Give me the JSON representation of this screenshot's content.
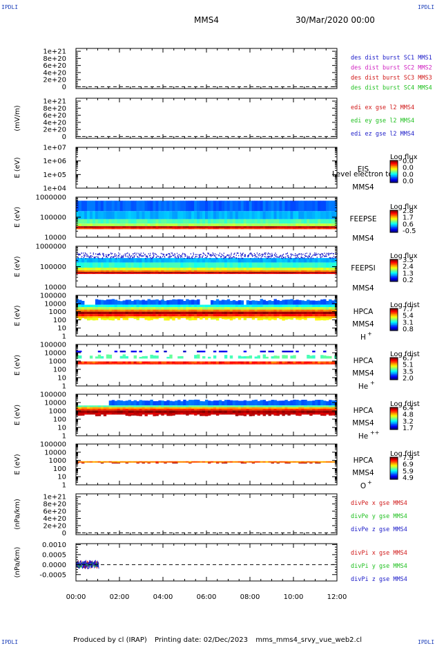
{
  "header": {
    "corner_label": "IPDLI",
    "spacecraft": "MMS4",
    "datetime": "30/Mar/2020 00:00"
  },
  "footer": {
    "produced": "Produced by cl (IRAP)",
    "printing": "Printing date: 02/Dec/2023",
    "script": "mms_mms4_srvy_vue_web2.cl"
  },
  "x_axis": {
    "ticks": [
      "00:00",
      "02:00",
      "04:00",
      "06:00",
      "08:00",
      "10:00",
      "12:00"
    ]
  },
  "chart_data": [
    {
      "id": "p1",
      "type": "line",
      "ylabel": "",
      "yticks": [
        "1e+21",
        "8e+20",
        "6e+20",
        "4e+20",
        "2e+20",
        "0"
      ],
      "yvals": [
        1e+21,
        8e+20,
        6e+20,
        4e+20,
        2e+20,
        0
      ],
      "ylim": [
        -5e+19,
        1.08e+21
      ],
      "zero_dashed": true,
      "legend": [
        {
          "text": "des dist burst SC1 MMS1",
          "color": "#1a1ac8"
        },
        {
          "text": "des dist burst SC2 MMS2",
          "color": "#d020c0"
        },
        {
          "text": "des dist burst SC3 MMS3",
          "color": "#d01818"
        },
        {
          "text": "des dist burst SC4 MMS4",
          "color": "#20c020"
        }
      ]
    },
    {
      "id": "p2",
      "type": "line",
      "ylabel": "(mV/m)",
      "yticks": [
        "1e+21",
        "8e+20",
        "6e+20",
        "4e+20",
        "2e+20",
        "0"
      ],
      "yvals": [
        1e+21,
        8e+20,
        6e+20,
        4e+20,
        2e+20,
        0
      ],
      "ylim": [
        -5e+19,
        1.08e+21
      ],
      "zero_dashed": true,
      "legend": [
        {
          "text": "edi ex gse l2 MMS4",
          "color": "#d01818"
        },
        {
          "text": "edi ey gse l2 MMS4",
          "color": "#20c020"
        },
        {
          "text": "edi ez gse l2 MMS4",
          "color": "#1a1ac8"
        }
      ]
    },
    {
      "id": "p3",
      "type": "heatmap",
      "ylabel": "E (eV)",
      "yticks": [
        "1e+07",
        "1e+06",
        "1e+05",
        "1e+04"
      ],
      "log_range": [
        4,
        7
      ],
      "instrument": "EIS",
      "craft": "MMS4",
      "overlay_text": "Level electron to",
      "colorbar": {
        "title": "Log flux",
        "labels": [
          "0.0",
          "0.0",
          "0.0",
          "0.0"
        ]
      },
      "spectrum": "none"
    },
    {
      "id": "p4",
      "type": "heatmap",
      "ylabel": "E (eV)",
      "yticks": [
        "1000000",
        "100000",
        "10000"
      ],
      "log_range": [
        4,
        6
      ],
      "instrument": "FEEPSE",
      "craft": "MMS4",
      "colorbar": {
        "title": "Log flux",
        "labels": [
          "2.8",
          "1.7",
          "0.6",
          "-0.5"
        ]
      },
      "spectrum": "feepse",
      "data_extent_hours": [
        0,
        12
      ]
    },
    {
      "id": "p5",
      "type": "heatmap",
      "ylabel": "E (eV)",
      "yticks": [
        "1000000",
        "100000",
        "10000"
      ],
      "log_range": [
        4,
        6
      ],
      "instrument": "FEEPSI",
      "craft": "MMS4",
      "colorbar": {
        "title": "Log flux",
        "labels": [
          "3.5",
          "2.4",
          "1.3",
          "0.2"
        ]
      },
      "spectrum": "feepsi",
      "data_extent_hours": [
        0,
        12
      ]
    },
    {
      "id": "p6",
      "type": "heatmap",
      "ylabel": "E (eV)",
      "yticks": [
        "100000",
        "10000",
        "1000",
        "100",
        "10",
        "1"
      ],
      "log_range": [
        0,
        5
      ],
      "instrument": "HPCA",
      "craft": "MMS4",
      "species": "H",
      "charge": "+",
      "colorbar": {
        "title": "Log fdist",
        "labels": [
          "7.7",
          "5.4",
          "3.1",
          "0.8"
        ]
      },
      "spectrum": "hpca_h",
      "data_extent_hours": [
        0,
        12
      ]
    },
    {
      "id": "p7",
      "type": "heatmap",
      "ylabel": "E (eV)",
      "yticks": [
        "100000",
        "10000",
        "1000",
        "100",
        "10",
        "1"
      ],
      "log_range": [
        0,
        5
      ],
      "instrument": "HPCA",
      "craft": "MMS4",
      "species": "He",
      "charge": "+",
      "colorbar": {
        "title": "Log fdist",
        "labels": [
          "6.7",
          "5.1",
          "3.5",
          "2.0"
        ]
      },
      "spectrum": "hpca_he1",
      "data_extent_hours": [
        0,
        12
      ]
    },
    {
      "id": "p8",
      "type": "heatmap",
      "ylabel": "E (eV)",
      "yticks": [
        "100000",
        "10000",
        "1000",
        "100",
        "10",
        "1"
      ],
      "log_range": [
        0,
        5
      ],
      "instrument": "HPCA",
      "craft": "MMS4",
      "species": "He",
      "charge": "++",
      "colorbar": {
        "title": "Log fdist",
        "labels": [
          "6.4",
          "4.8",
          "3.2",
          "1.7"
        ]
      },
      "spectrum": "hpca_he2",
      "data_extent_hours": [
        0,
        12
      ]
    },
    {
      "id": "p9",
      "type": "heatmap",
      "ylabel": "E (eV)",
      "yticks": [
        "100000",
        "10000",
        "1000",
        "100",
        "10",
        "1"
      ],
      "log_range": [
        0,
        5
      ],
      "instrument": "HPCA",
      "craft": "MMS4",
      "species": "O",
      "charge": "+",
      "colorbar": {
        "title": "Log fdist",
        "labels": [
          "7.9",
          "6.9",
          "5.9",
          "4.9"
        ]
      },
      "spectrum": "hpca_o",
      "data_extent_hours": [
        0,
        12
      ]
    },
    {
      "id": "p10",
      "type": "line",
      "ylabel": "(nPa/km)",
      "yticks": [
        "1e+21",
        "8e+20",
        "6e+20",
        "4e+20",
        "2e+20",
        "0"
      ],
      "yvals": [
        1e+21,
        8e+20,
        6e+20,
        4e+20,
        2e+20,
        0
      ],
      "ylim": [
        -5e+19,
        1.08e+21
      ],
      "zero_dashed": true,
      "legend": [
        {
          "text": "divPe x gse MMS4",
          "color": "#d01818"
        },
        {
          "text": "divPe y gse MMS4",
          "color": "#20c020"
        },
        {
          "text": "divPe z gse MMS4",
          "color": "#1a1ac8"
        }
      ]
    },
    {
      "id": "p11",
      "type": "line",
      "ylabel": "(nPa/km)",
      "yticks": [
        "0.0010",
        "0.0005",
        "0.0000",
        "-0.0005"
      ],
      "yvals": [
        0.001,
        0.0005,
        0.0,
        -0.0005
      ],
      "ylim": [
        -0.00082,
        0.00105
      ],
      "zero_dashed": true,
      "noise_extent_hours": [
        0,
        1.05
      ],
      "noise_amplitude": 0.00022,
      "legend": [
        {
          "text": "divPi x gse MMS4",
          "color": "#d01818"
        },
        {
          "text": "divPi y gse MMS4",
          "color": "#20c020"
        },
        {
          "text": "divPi z gse MMS4",
          "color": "#1a1ac8"
        }
      ]
    }
  ]
}
